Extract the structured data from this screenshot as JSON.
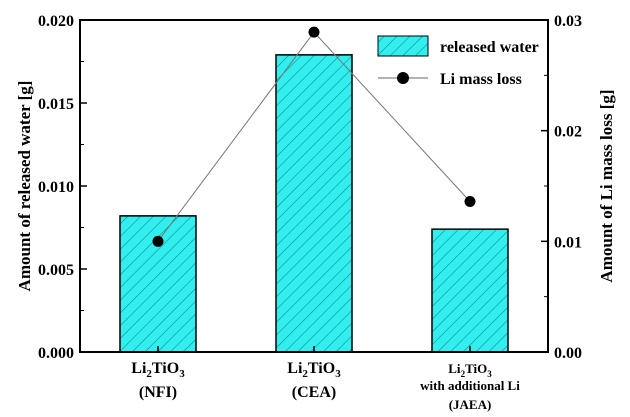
{
  "chart_data": {
    "type": "bar",
    "categories": [
      {
        "formula": "Li2TiO3",
        "sub_text": "(NFI)"
      },
      {
        "formula": "Li2TiO3",
        "sub_text": "(CEA)"
      },
      {
        "formula": "Li2TiO3",
        "sub_text": "with additional Li",
        "sub_text2": "(JAEA)"
      }
    ],
    "series": [
      {
        "name": "released water",
        "type": "bar",
        "axis": "left",
        "values": [
          0.0082,
          0.0179,
          0.0074
        ],
        "color": "#33eeee"
      },
      {
        "name": "Li mass loss",
        "type": "line",
        "axis": "right",
        "values": [
          0.01,
          0.0289,
          0.0136
        ],
        "color": "#000000"
      }
    ],
    "ylabel_left": "Amount of released water [g]",
    "ylabel_right": "Amount of Li mass loss [g]",
    "ylim_left": [
      0.0,
      0.02
    ],
    "ylim_right": [
      0.0,
      0.03
    ],
    "yticks_left": [
      "0.000",
      "0.005",
      "0.010",
      "0.015",
      "0.020"
    ],
    "yticks_right": [
      "0.00",
      "0.01",
      "0.02",
      "0.03"
    ],
    "legend": {
      "position": "top-right"
    },
    "grid": false
  }
}
